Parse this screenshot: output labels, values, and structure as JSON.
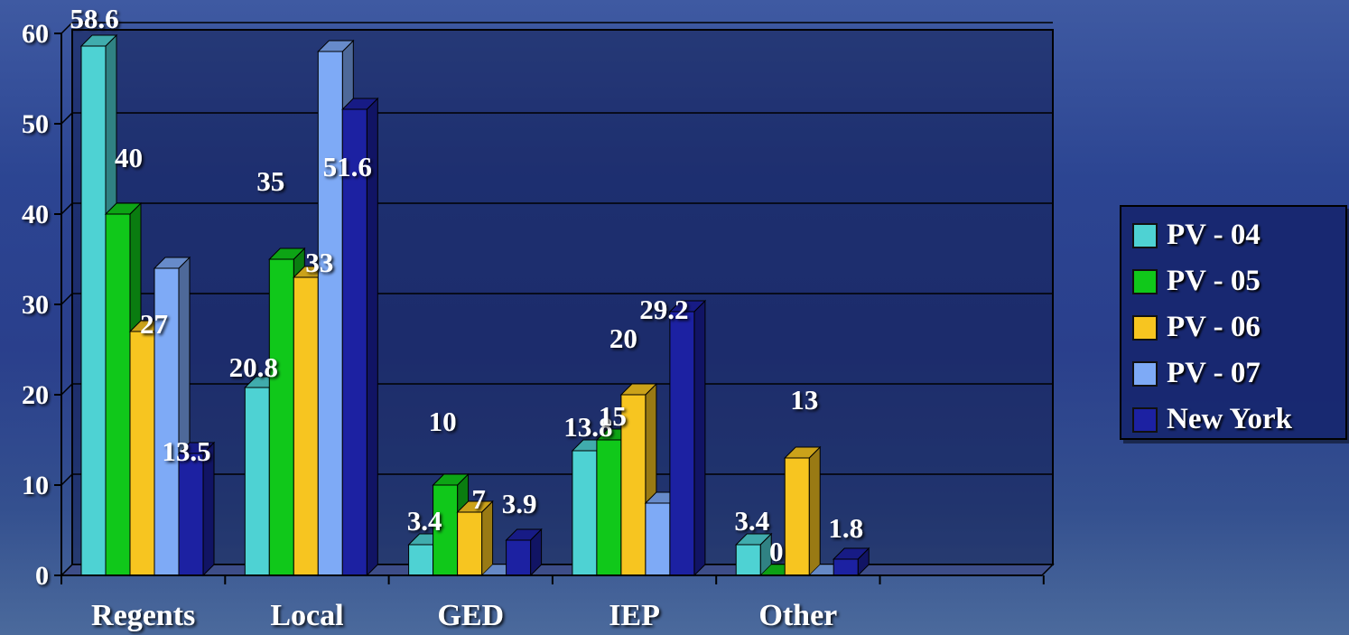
{
  "chart_data": {
    "type": "bar",
    "categories": [
      "Regents",
      "Local",
      "GED",
      "IEP",
      "Other"
    ],
    "series": [
      {
        "name": "PV - 04",
        "color": "#4ed2d3",
        "values": [
          58.6,
          20.8,
          3.4,
          13.8,
          3.4
        ]
      },
      {
        "name": "PV - 05",
        "color": "#10c81a",
        "values": [
          40,
          35,
          10,
          15,
          0
        ]
      },
      {
        "name": "PV - 06",
        "color": "#f7c520",
        "values": [
          27,
          33,
          7,
          20,
          13
        ]
      },
      {
        "name": "PV - 07",
        "color": "#7eaaf6",
        "values": [
          34,
          58,
          0,
          8,
          0
        ]
      },
      {
        "name": "New York",
        "color": "#1c21a2",
        "values": [
          13.5,
          51.6,
          3.9,
          29.2,
          1.8
        ]
      }
    ],
    "data_labels": [
      [
        "58.6",
        "20.8",
        "3.4",
        "13.8",
        "3.4"
      ],
      [
        "40",
        "35",
        "10",
        "15",
        "0"
      ],
      [
        "27",
        "33",
        "7",
        "20",
        "13"
      ],
      [
        "",
        "",
        "",
        "",
        ""
      ],
      [
        "13.5",
        "51.6",
        "3.9",
        "29.2",
        "1.8"
      ]
    ],
    "yticks": [
      "0",
      "10",
      "20",
      "30",
      "40",
      "50",
      "60"
    ],
    "ylim": [
      0,
      60
    ],
    "grid": true,
    "legend_position": "right",
    "title": "",
    "xlabel": "",
    "ylabel": ""
  }
}
